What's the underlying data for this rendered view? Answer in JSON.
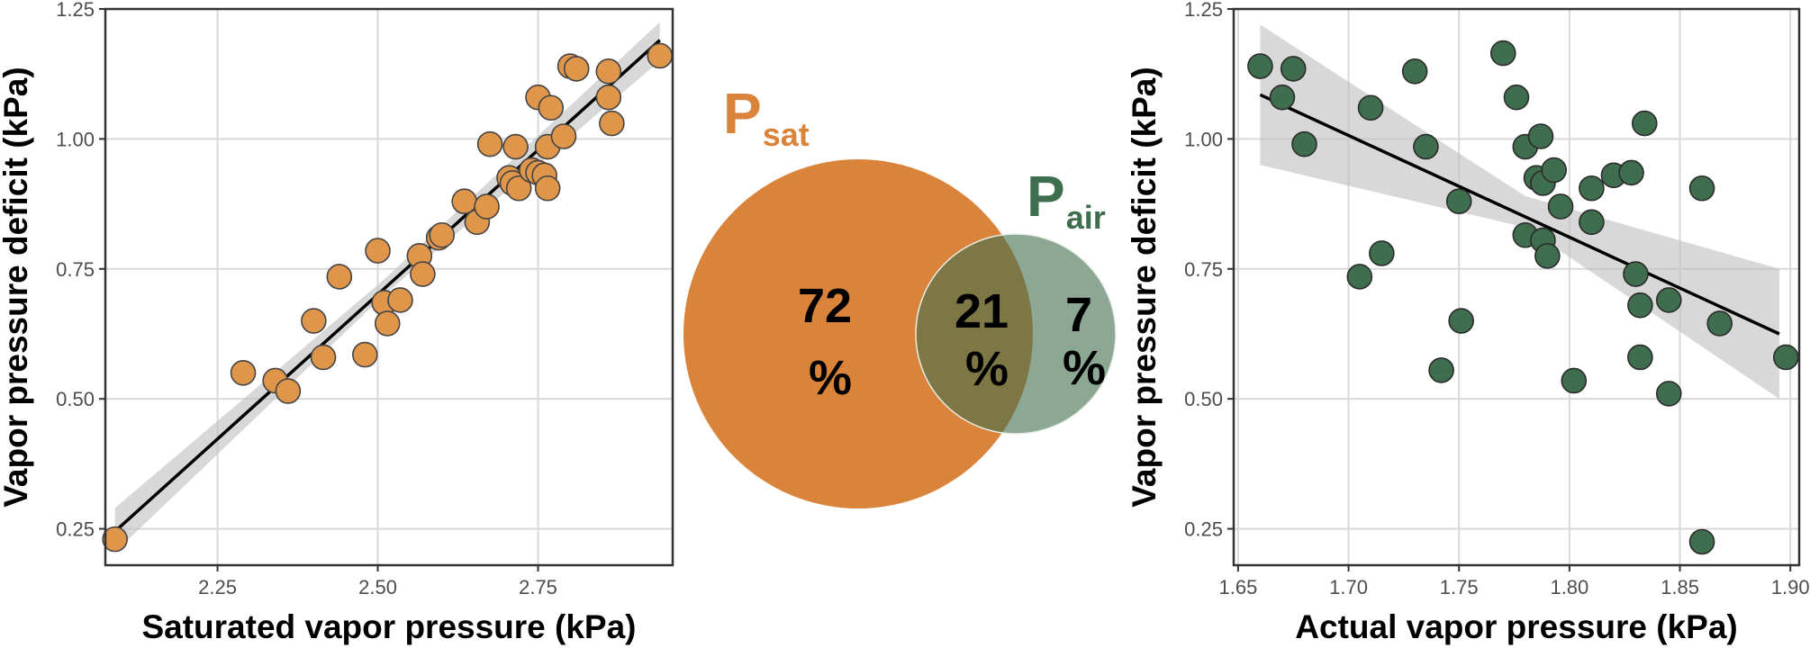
{
  "chart_data": [
    {
      "type": "scatter",
      "xlabel": "Saturated vapor pressure (kPa)",
      "ylabel": "Vapor pressure deficit (kPa)",
      "xlim": [
        2.075,
        2.96
      ],
      "ylim": [
        0.18,
        1.25
      ],
      "x_ticks": [
        2.25,
        2.5,
        2.75
      ],
      "x_tick_labels": [
        "2.25",
        "2.50",
        "2.75"
      ],
      "y_ticks": [
        0.25,
        0.5,
        0.75,
        1.0,
        1.25
      ],
      "y_tick_labels": [
        "0.25",
        "0.50",
        "0.75",
        "1.00",
        "1.25"
      ],
      "grid": true,
      "point_color": "#e0964a",
      "points": [
        {
          "x": 2.09,
          "y": 0.23
        },
        {
          "x": 2.29,
          "y": 0.55
        },
        {
          "x": 2.34,
          "y": 0.535
        },
        {
          "x": 2.36,
          "y": 0.515
        },
        {
          "x": 2.4,
          "y": 0.65
        },
        {
          "x": 2.415,
          "y": 0.58
        },
        {
          "x": 2.44,
          "y": 0.735
        },
        {
          "x": 2.48,
          "y": 0.585
        },
        {
          "x": 2.5,
          "y": 0.785
        },
        {
          "x": 2.51,
          "y": 0.685
        },
        {
          "x": 2.515,
          "y": 0.645
        },
        {
          "x": 2.535,
          "y": 0.69
        },
        {
          "x": 2.565,
          "y": 0.775
        },
        {
          "x": 2.57,
          "y": 0.74
        },
        {
          "x": 2.595,
          "y": 0.81
        },
        {
          "x": 2.6,
          "y": 0.815
        },
        {
          "x": 2.635,
          "y": 0.88
        },
        {
          "x": 2.655,
          "y": 0.84
        },
        {
          "x": 2.67,
          "y": 0.87
        },
        {
          "x": 2.675,
          "y": 0.99
        },
        {
          "x": 2.705,
          "y": 0.925
        },
        {
          "x": 2.71,
          "y": 0.915
        },
        {
          "x": 2.715,
          "y": 0.985
        },
        {
          "x": 2.72,
          "y": 0.905
        },
        {
          "x": 2.74,
          "y": 0.94
        },
        {
          "x": 2.75,
          "y": 0.935
        },
        {
          "x": 2.75,
          "y": 1.08
        },
        {
          "x": 2.76,
          "y": 0.93
        },
        {
          "x": 2.765,
          "y": 0.985
        },
        {
          "x": 2.765,
          "y": 0.905
        },
        {
          "x": 2.77,
          "y": 1.06
        },
        {
          "x": 2.79,
          "y": 1.005
        },
        {
          "x": 2.8,
          "y": 1.14
        },
        {
          "x": 2.81,
          "y": 1.135
        },
        {
          "x": 2.86,
          "y": 1.13
        },
        {
          "x": 2.86,
          "y": 1.08
        },
        {
          "x": 2.865,
          "y": 1.03
        },
        {
          "x": 2.94,
          "y": 1.16
        }
      ],
      "fit_line": [
        {
          "x": 2.09,
          "y": 0.245
        },
        {
          "x": 2.94,
          "y": 1.19
        }
      ],
      "ci_band": {
        "x": [
          2.09,
          2.51,
          2.94
        ],
        "lower": [
          0.205,
          0.7,
          1.15
        ],
        "upper": [
          0.29,
          0.73,
          1.225
        ]
      }
    },
    {
      "type": "venn",
      "sets": [
        {
          "name": "P",
          "subscript": "sat",
          "color": "#d9843a"
        },
        {
          "name": "P",
          "subscript": "air",
          "color": "#3f6e4e"
        }
      ],
      "regions": [
        {
          "region": "sat_only",
          "value": 72,
          "label_top": "72",
          "label_bottom": "%"
        },
        {
          "region": "overlap",
          "value": 21,
          "label_top": "21",
          "label_bottom": "%"
        },
        {
          "region": "air_only",
          "value": 7,
          "label_top": "7",
          "label_bottom": "%"
        }
      ]
    },
    {
      "type": "scatter",
      "xlabel": "Actual vapor pressure (kPa)",
      "ylabel": "Vapor pressure deficit (kPa)",
      "xlim": [
        1.648,
        1.904
      ],
      "ylim": [
        0.18,
        1.25
      ],
      "x_ticks": [
        1.65,
        1.7,
        1.75,
        1.8,
        1.85,
        1.9
      ],
      "x_tick_labels": [
        "1.65",
        "1.70",
        "1.75",
        "1.80",
        "1.85",
        "1.90"
      ],
      "y_ticks": [
        0.25,
        0.5,
        0.75,
        1.0,
        1.25
      ],
      "y_tick_labels": [
        "0.25",
        "0.50",
        "0.75",
        "1.00",
        "1.25"
      ],
      "grid": true,
      "point_color": "#3f6e4e",
      "points": [
        {
          "x": 1.66,
          "y": 1.14
        },
        {
          "x": 1.67,
          "y": 1.08
        },
        {
          "x": 1.675,
          "y": 1.135
        },
        {
          "x": 1.68,
          "y": 0.99
        },
        {
          "x": 1.705,
          "y": 0.735
        },
        {
          "x": 1.71,
          "y": 1.06
        },
        {
          "x": 1.715,
          "y": 0.78
        },
        {
          "x": 1.73,
          "y": 1.13
        },
        {
          "x": 1.735,
          "y": 0.985
        },
        {
          "x": 1.742,
          "y": 0.555
        },
        {
          "x": 1.75,
          "y": 0.88
        },
        {
          "x": 1.751,
          "y": 0.65
        },
        {
          "x": 1.77,
          "y": 1.165
        },
        {
          "x": 1.776,
          "y": 1.08
        },
        {
          "x": 1.78,
          "y": 0.985
        },
        {
          "x": 1.78,
          "y": 0.815
        },
        {
          "x": 1.785,
          "y": 0.925
        },
        {
          "x": 1.787,
          "y": 1.005
        },
        {
          "x": 1.788,
          "y": 0.915
        },
        {
          "x": 1.788,
          "y": 0.805
        },
        {
          "x": 1.79,
          "y": 0.775
        },
        {
          "x": 1.793,
          "y": 0.94
        },
        {
          "x": 1.796,
          "y": 0.87
        },
        {
          "x": 1.802,
          "y": 0.535
        },
        {
          "x": 1.81,
          "y": 0.905
        },
        {
          "x": 1.81,
          "y": 0.84
        },
        {
          "x": 1.82,
          "y": 0.93
        },
        {
          "x": 1.828,
          "y": 0.935
        },
        {
          "x": 1.83,
          "y": 0.74
        },
        {
          "x": 1.832,
          "y": 0.68
        },
        {
          "x": 1.832,
          "y": 0.58
        },
        {
          "x": 1.834,
          "y": 1.03
        },
        {
          "x": 1.845,
          "y": 0.69
        },
        {
          "x": 1.845,
          "y": 0.51
        },
        {
          "x": 1.86,
          "y": 0.905
        },
        {
          "x": 1.86,
          "y": 0.225
        },
        {
          "x": 1.868,
          "y": 0.645
        },
        {
          "x": 1.898,
          "y": 0.58
        }
      ],
      "fit_line": [
        {
          "x": 1.66,
          "y": 1.085
        },
        {
          "x": 1.895,
          "y": 0.625
        }
      ],
      "ci_band": {
        "x": [
          1.66,
          1.78,
          1.895
        ],
        "lower": [
          0.95,
          0.83,
          0.5
        ],
        "upper": [
          1.22,
          0.89,
          0.75
        ]
      }
    }
  ]
}
